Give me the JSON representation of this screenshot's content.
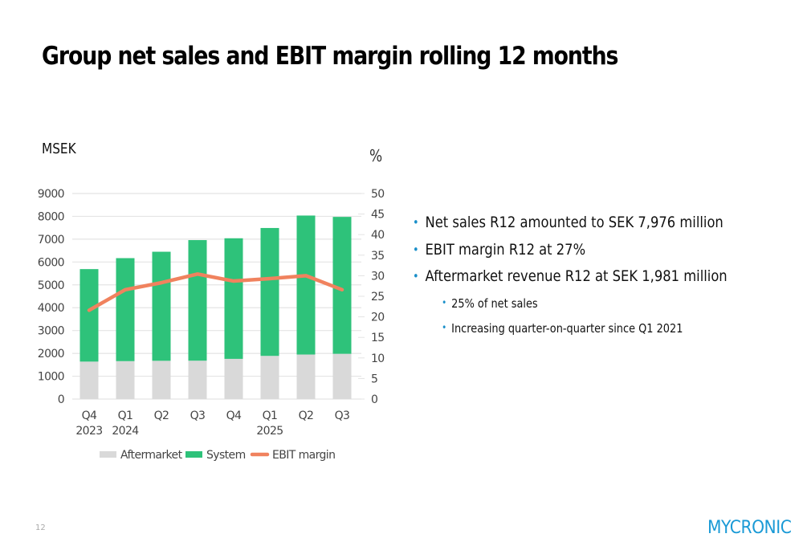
{
  "slide": {
    "title": "Group net sales and EBIT margin rolling 12 months",
    "page_number": "12",
    "logo_text": "MYCRONIC"
  },
  "colors": {
    "aftermarket": "#d9d9d9",
    "system": "#2ec27a",
    "ebit": "#f0825e",
    "gridline": "#e4e4e4",
    "bullet": "#1a8fc9",
    "logo": "#1a9ad6"
  },
  "bullets": [
    {
      "level": 1,
      "text": "Net sales R12 amounted to SEK 7,976 million"
    },
    {
      "level": 1,
      "text": "EBIT margin R12 at 27%"
    },
    {
      "level": 1,
      "text": "Aftermarket revenue R12 at SEK 1,981 million"
    },
    {
      "level": 2,
      "text": "25% of net sales"
    },
    {
      "level": 2,
      "text": "Increasing quarter-on-quarter since Q1 2021"
    }
  ],
  "chart_data": {
    "type": "bar",
    "stacked": true,
    "title": "",
    "ylabel": "MSEK",
    "y2label": "%",
    "ylim": [
      0,
      9000
    ],
    "y2lim": [
      0,
      50
    ],
    "yticks": [
      "0",
      "1000",
      "2000",
      "3000",
      "4000",
      "5000",
      "6000",
      "7000",
      "8000",
      "9000"
    ],
    "y2ticks": [
      "0",
      "5",
      "10",
      "15",
      "20",
      "25",
      "30",
      "35",
      "40",
      "45",
      "50"
    ],
    "grid": true,
    "legend_position": "bottom",
    "categories": [
      [
        "Q4",
        "2023"
      ],
      [
        "Q1",
        "2024"
      ],
      [
        "Q2",
        ""
      ],
      [
        "Q3",
        ""
      ],
      [
        "Q4",
        ""
      ],
      [
        "Q1",
        "2025"
      ],
      [
        "Q2",
        ""
      ],
      [
        "Q3",
        ""
      ]
    ],
    "series": [
      {
        "name": "Aftermarket",
        "type": "bar",
        "axis": "left",
        "values": [
          1640,
          1660,
          1675,
          1680,
          1760,
          1890,
          1950,
          1981
        ]
      },
      {
        "name": "System",
        "type": "bar",
        "axis": "left",
        "values": [
          4050,
          4510,
          4775,
          5280,
          5280,
          5600,
          6085,
          5995
        ]
      },
      {
        "name": "EBIT margin",
        "type": "line",
        "axis": "right",
        "values": [
          21.6,
          26.6,
          28.3,
          30.4,
          28.7,
          29.3,
          30.0,
          26.6
        ]
      }
    ],
    "totals": [
      5690,
      6170,
      6450,
      6960,
      7040,
      7490,
      8035,
      7976
    ]
  }
}
